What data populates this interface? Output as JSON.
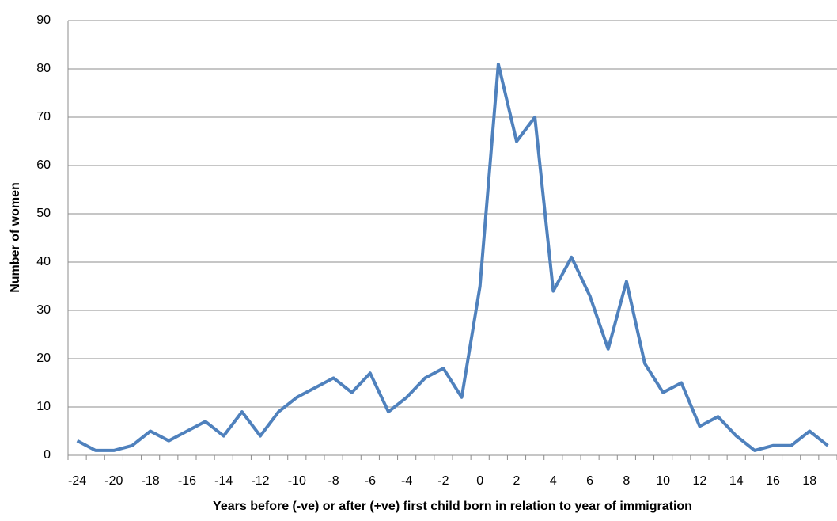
{
  "chart_data": {
    "type": "line",
    "y_label": "Number of women",
    "x_label": "Years before (-ve) or after (+ve) first child born in relation to year of immigration",
    "categories": [
      "-24",
      null,
      "-20",
      null,
      "-18",
      null,
      "-16",
      null,
      "-14",
      null,
      "-12",
      null,
      "-10",
      null,
      "-8",
      null,
      "-6",
      null,
      "-4",
      null,
      "-2",
      null,
      "0",
      null,
      "2",
      null,
      "4",
      null,
      "6",
      null,
      "8",
      null,
      "10",
      null,
      "12",
      null,
      "14",
      null,
      "16",
      null,
      "18",
      null
    ],
    "series": [
      {
        "name": "Number of women",
        "color": "#4f81bd",
        "values": [
          3,
          1,
          1,
          2,
          5,
          3,
          5,
          7,
          4,
          9,
          4,
          9,
          12,
          14,
          16,
          13,
          17,
          9,
          12,
          16,
          18,
          12,
          35,
          81,
          65,
          70,
          34,
          41,
          33,
          22,
          36,
          19,
          13,
          15,
          6,
          8,
          4,
          1,
          2,
          2,
          5,
          2
        ]
      }
    ],
    "ylim": [
      0,
      90
    ],
    "yticks": [
      0,
      10,
      20,
      30,
      40,
      50,
      60,
      70,
      80,
      90
    ],
    "grid": true
  }
}
